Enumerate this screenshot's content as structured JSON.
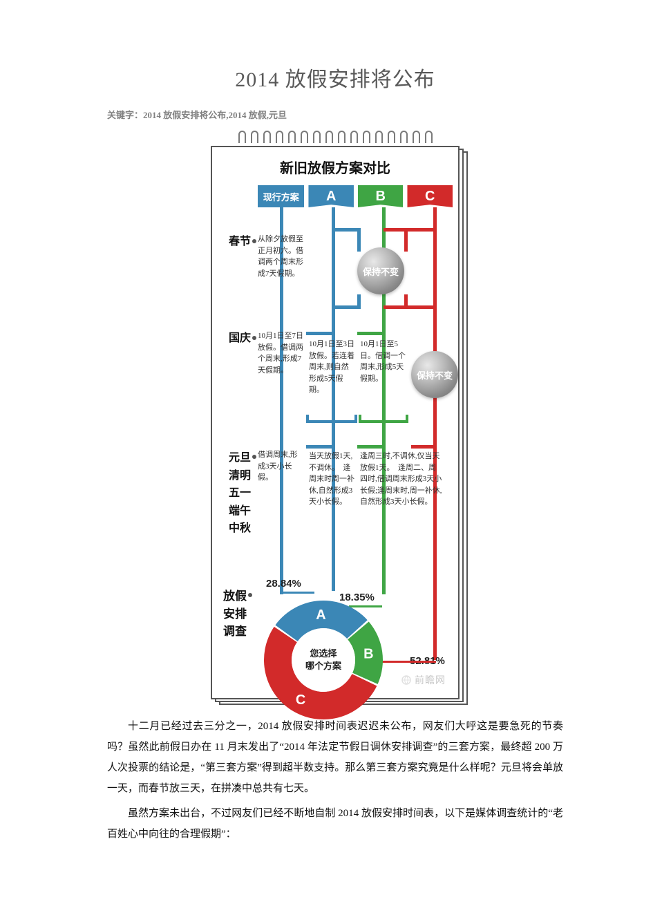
{
  "title": "2014 放假安排将公布",
  "keywords_label": "关键字：",
  "keywords_text": "2014 放假安排将公布,2014 放假,元旦",
  "infographic": {
    "heading": "新旧放假方案对比",
    "tags": {
      "current": "现行方案",
      "a": "A",
      "b": "B",
      "c": "C"
    },
    "colors": {
      "blue": "#3b87b6",
      "green": "#3fa544",
      "red": "#d22a2a",
      "grey": "#8a8a8a",
      "text": "#333333"
    },
    "holidays": {
      "chunjie": {
        "label": "春节",
        "current": "从除夕放假至正月初六。借调两个周末形成7天假期。",
        "unchanged": "保持不变"
      },
      "guoqing": {
        "label": "国庆",
        "current": "10月1日至7日放假。借调两个周末,形成7天假期。",
        "a": "10月1日至3日放假。若连着周末,则自然形成5天假期。",
        "b": "10月1日至5日。借调一个周末,形成5天假期。",
        "unchanged": "保持不变"
      },
      "short": {
        "labels": [
          "元旦",
          "清明",
          "五一",
          "端午",
          "中秋"
        ],
        "current": "借调周末,形成3天小长假。",
        "a": "当天放假1天,不调休。　逢周末时周一补休,自然形成3天小长假。",
        "bc": "逢周三时,不调休,仅当天放假1天。　逢周二、周四时,借调周末形成3天小长假;逢周末时,周一补休,自然形成3天小长假。"
      },
      "survey_label": "放假安排调查"
    },
    "chart": {
      "type": "donut",
      "center_top": "您选择",
      "center_bottom": "哪个方案",
      "slices": [
        {
          "label": "A",
          "value": 28.84,
          "color": "#3b87b6"
        },
        {
          "label": "B",
          "value": 18.35,
          "color": "#3fa544"
        },
        {
          "label": "C",
          "value": 52.81,
          "color": "#d22a2a"
        }
      ],
      "start_angle_deg": -145,
      "inner_r": 46,
      "outer_r": 86,
      "gap_deg": 2,
      "background": "#ffffff"
    },
    "watermark": "前瞻网"
  },
  "paragraph1": "十二月已经过去三分之一，2014 放假安排时间表迟迟未公布，网友们大呼这是要急死的节奏吗？虽然此前假日办在 11 月末发出了“2014 年法定节假日调休安排调查”的三套方案，最终超 200 万人次投票的结论是，“第三套方案”得到超半数支持。那么第三套方案究竟是什么样呢？元旦将会单放一天，而春节放三天，在拼凑中总共有七天。",
  "paragraph2": "虽然方案未出台，不过网友们已经不断地自制 2014 放假安排时间表，以下是媒体调查统计的“老百姓心中向往的合理假期”："
}
